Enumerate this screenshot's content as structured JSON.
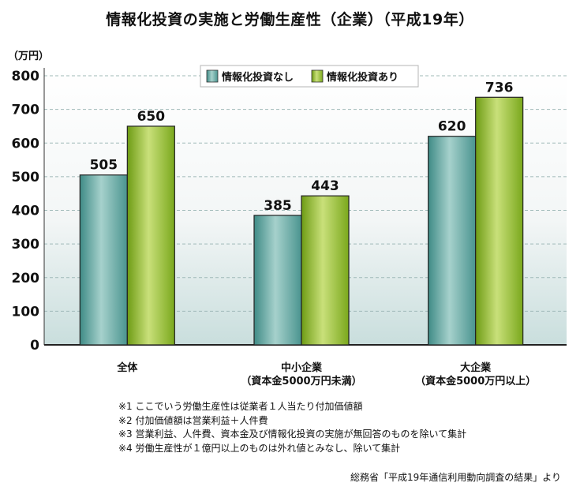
{
  "chart_data": {
    "type": "bar",
    "title": "情報化投資の実施と労働生産性（企業）（平成19年）",
    "ylabel": "（万円）",
    "ylim": [
      0,
      800
    ],
    "yticks": [
      "0",
      "100",
      "200",
      "300",
      "400",
      "500",
      "600",
      "700",
      "800"
    ],
    "categories": [
      {
        "lines": [
          "全体"
        ]
      },
      {
        "lines": [
          "中小企業",
          "（資本金5000万円未満）"
        ]
      },
      {
        "lines": [
          "大企業",
          "（資本金5000万円以上）"
        ]
      }
    ],
    "series": [
      {
        "name": "情報化投資なし",
        "values": [
          505,
          385,
          620
        ],
        "color": "#4e9e98"
      },
      {
        "name": "情報化投資あり",
        "values": [
          650,
          443,
          736
        ],
        "color": "#7fae22"
      }
    ],
    "grid": true,
    "legend": "top-center"
  },
  "notes": [
    "※1 ここでいう労働生産性は従業者１人当たり付加価値額",
    "※2 付加価値額は営業利益＋人件費",
    "※3 営業利益、人件費、資本金及び情報化投資の実施が無回答のものを除いて集計",
    "※4 労働生産性が１億円以上のものは外れ値とみなし、除いて集計"
  ],
  "source": "総務省「平成19年通信利用動向調査の結果」より"
}
